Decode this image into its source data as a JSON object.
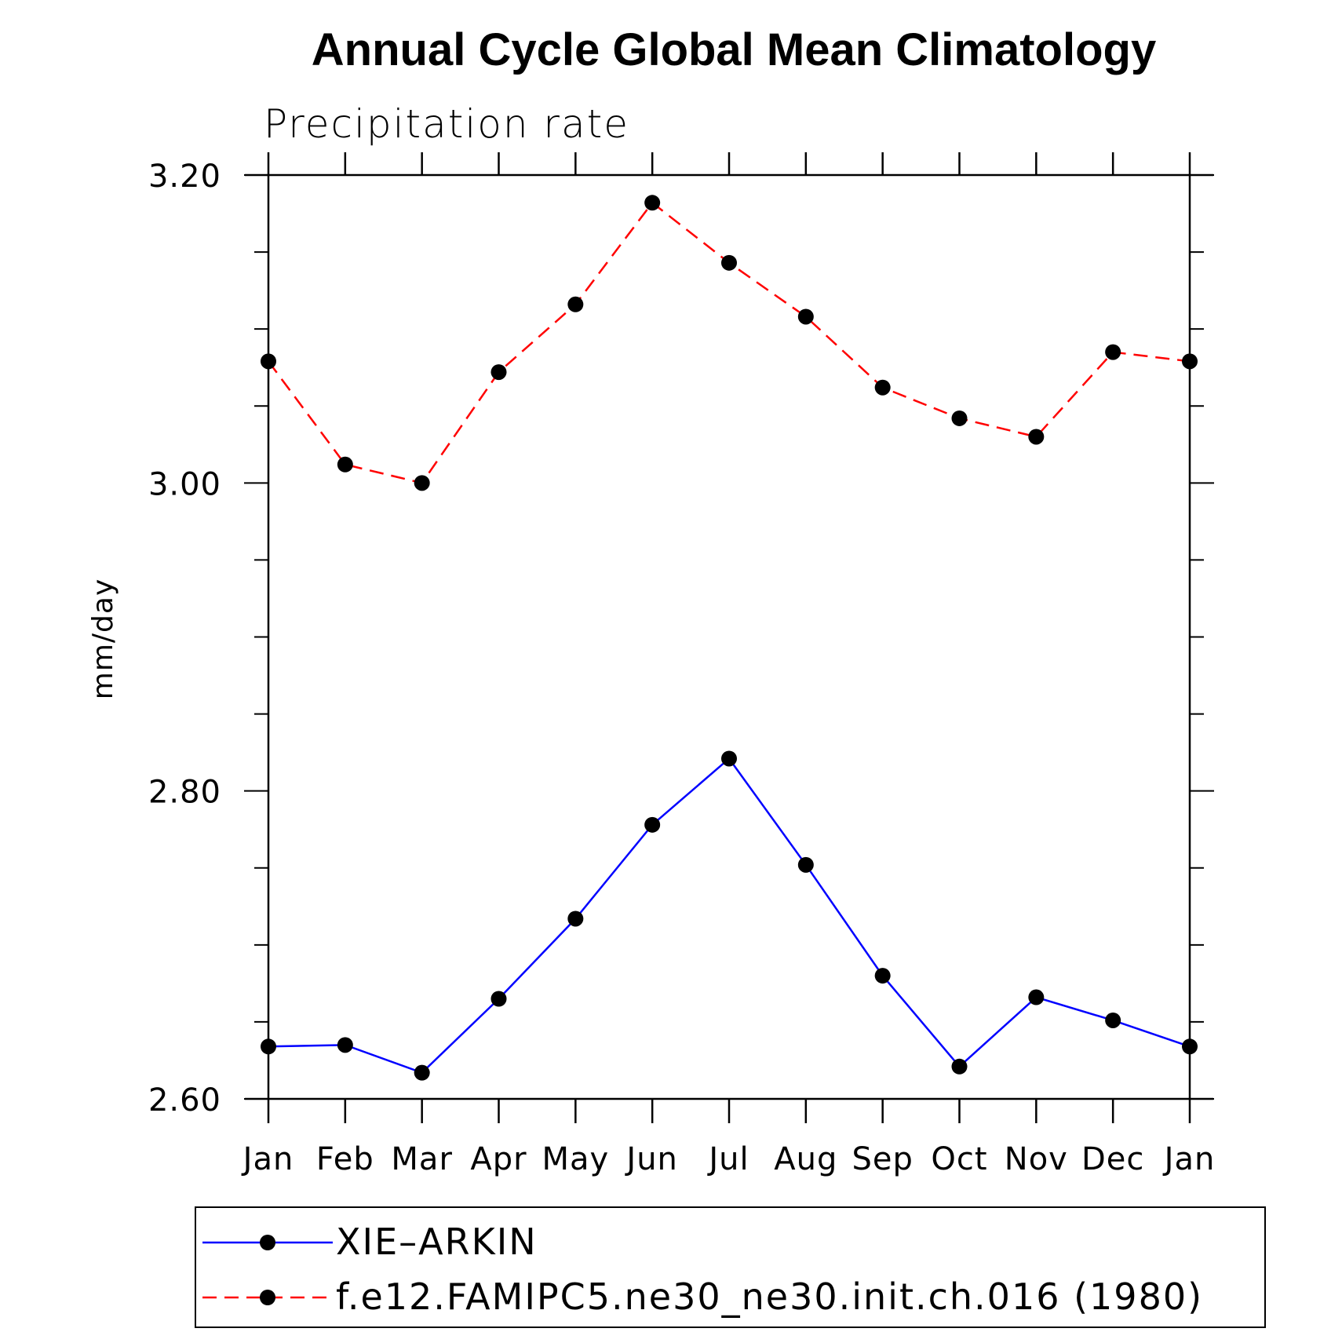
{
  "chart_data": {
    "type": "line",
    "title": "Annual Cycle Global Mean Climatology",
    "subtitle": "Precipitation rate",
    "xlabel": "",
    "ylabel": "mm/day",
    "categories": [
      "Jan",
      "Feb",
      "Mar",
      "Apr",
      "May",
      "Jun",
      "Jul",
      "Aug",
      "Sep",
      "Oct",
      "Nov",
      "Dec",
      "Jan"
    ],
    "ylim": [
      2.6,
      3.2
    ],
    "yticks": [
      "2.60",
      "2.80",
      "3.00",
      "3.20"
    ],
    "yminor_step": 0.05,
    "legend_placement": "bottom",
    "grid": false,
    "series": [
      {
        "name": "XIE–ARKIN",
        "color": "#0000ff",
        "line_style": "solid",
        "marker": "filled-circle",
        "values": [
          2.634,
          2.635,
          2.617,
          2.665,
          2.717,
          2.778,
          2.821,
          2.752,
          2.68,
          2.621,
          2.666,
          2.651,
          2.634
        ]
      },
      {
        "name": "f.e12.FAMIPC5.ne30_ne30.init.ch.016 (1980)",
        "color": "#ff0000",
        "line_style": "dashed",
        "marker": "filled-circle",
        "values": [
          3.079,
          3.012,
          3.0,
          3.072,
          3.116,
          3.182,
          3.143,
          3.108,
          3.062,
          3.042,
          3.03,
          3.085,
          3.079
        ]
      }
    ]
  }
}
